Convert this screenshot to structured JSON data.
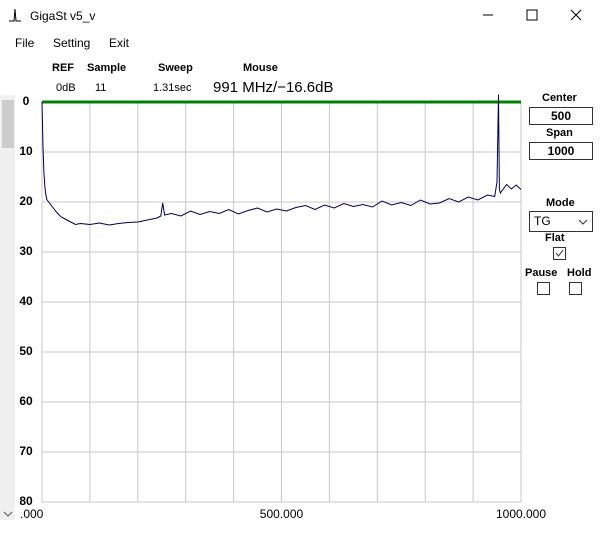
{
  "window": {
    "title": "GigaSt v5_v"
  },
  "menu": [
    "File",
    "Setting",
    "Exit"
  ],
  "status": {
    "headers": [
      "REF",
      "Sample",
      "Sweep",
      "Mouse"
    ],
    "values": [
      "0dB",
      "11",
      "1.31sec",
      "991 MHz/−16.6dB"
    ]
  },
  "controls": {
    "center_label": "Center",
    "center": "500",
    "span_label": "Span",
    "span": "1000",
    "mode_label": "Mode",
    "mode": "TG",
    "flat_label": "Flat",
    "flat": true,
    "pause_label": "Pause",
    "pause": false,
    "hold_label": "Hold",
    "hold": false
  },
  "chart_data": {
    "type": "line",
    "x": [
      0,
      2,
      4,
      6,
      8,
      10,
      14,
      18,
      22,
      26,
      30,
      40,
      50,
      60,
      70,
      80,
      100,
      120,
      140,
      160,
      180,
      200,
      220,
      240,
      248,
      252,
      256,
      270,
      290,
      310,
      330,
      350,
      370,
      390,
      410,
      430,
      450,
      470,
      490,
      510,
      530,
      550,
      570,
      590,
      610,
      630,
      650,
      670,
      690,
      710,
      730,
      750,
      770,
      790,
      810,
      830,
      850,
      870,
      890,
      910,
      930,
      945,
      950,
      953,
      955,
      957,
      960,
      970,
      980,
      990,
      1000
    ],
    "values": [
      0,
      9,
      14,
      17,
      18.5,
      19.5,
      20,
      20.5,
      21,
      21.5,
      22,
      23,
      23.5,
      24,
      24.5,
      24.3,
      24.5,
      24.2,
      24.6,
      24.3,
      24.1,
      24.0,
      23.6,
      23.2,
      22.8,
      20.2,
      22.6,
      22.3,
      22.8,
      21.8,
      22.5,
      21.9,
      22.3,
      21.5,
      22.4,
      21.7,
      21.2,
      22.0,
      21.4,
      21.8,
      21.1,
      20.7,
      21.5,
      20.6,
      21.2,
      20.3,
      20.9,
      20.5,
      21.0,
      19.8,
      20.6,
      20.1,
      20.7,
      19.6,
      20.4,
      20.2,
      19.3,
      20.0,
      19.0,
      19.6,
      18.6,
      18.9,
      16.0,
      -1.5,
      17.5,
      18.2,
      17.8,
      16.5,
      17.4,
      16.6,
      17.5
    ],
    "color": "#000050",
    "xlim": [
      0,
      1000
    ],
    "xticks": [
      {
        "value": 0,
        "label": ".000"
      },
      {
        "value": 500,
        "label": "500.000"
      },
      {
        "value": 1000,
        "label": "1000.000"
      }
    ],
    "xgrid": [
      0,
      100,
      200,
      300,
      400,
      500,
      600,
      700,
      800,
      900,
      1000
    ],
    "ylim": [
      0,
      80
    ],
    "y_inverted": true,
    "yticks": [
      0,
      10,
      20,
      30,
      40,
      50,
      60,
      70,
      80
    ],
    "grid": true,
    "ref_line": 0,
    "ref_color": "#008000"
  }
}
